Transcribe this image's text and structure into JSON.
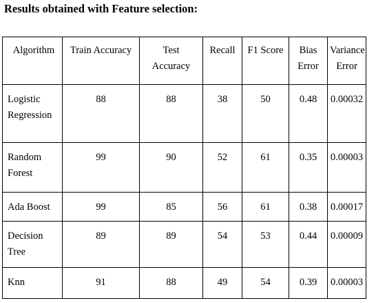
{
  "heading": "Results obtained with Feature selection:",
  "table": {
    "headers": [
      [
        "Algorithm"
      ],
      [
        "Train Accuracy"
      ],
      [
        "Test",
        "Accuracy"
      ],
      [
        "Recall"
      ],
      [
        "F1 Score"
      ],
      [
        "Bias",
        "Error"
      ],
      [
        "Variance",
        "Error"
      ]
    ],
    "rows": [
      {
        "algorithm": [
          "Logistic",
          "Regression"
        ],
        "train_accuracy": "88",
        "test_accuracy": "88",
        "recall": "38",
        "f1_score": "50",
        "bias_error": "0.48",
        "variance_error": "0.00032"
      },
      {
        "algorithm": [
          "Random",
          "Forest"
        ],
        "train_accuracy": "99",
        "test_accuracy": "90",
        "recall": "52",
        "f1_score": "61",
        "bias_error": "0.35",
        "variance_error": "0.00003"
      },
      {
        "algorithm": [
          "Ada Boost"
        ],
        "train_accuracy": "99",
        "test_accuracy": "85",
        "recall": "56",
        "f1_score": "61",
        "bias_error": "0.38",
        "variance_error": "0.00017"
      },
      {
        "algorithm": [
          "Decision",
          "Tree"
        ],
        "train_accuracy": "89",
        "test_accuracy": "89",
        "recall": "54",
        "f1_score": "53",
        "bias_error": "0.44",
        "variance_error": "0.00009"
      },
      {
        "algorithm": [
          "Knn"
        ],
        "train_accuracy": "91",
        "test_accuracy": "88",
        "recall": "49",
        "f1_score": "54",
        "bias_error": "0.39",
        "variance_error": "0.00003"
      }
    ]
  }
}
